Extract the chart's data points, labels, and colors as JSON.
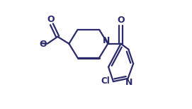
{
  "bg_color": "#ffffff",
  "line_color": "#2b2b6b",
  "lw": 1.6,
  "figsize": [
    2.71,
    1.54
  ],
  "dpi": 100,
  "xlim": [
    0.0,
    1.0
  ],
  "ylim": [
    0.0,
    1.0
  ]
}
